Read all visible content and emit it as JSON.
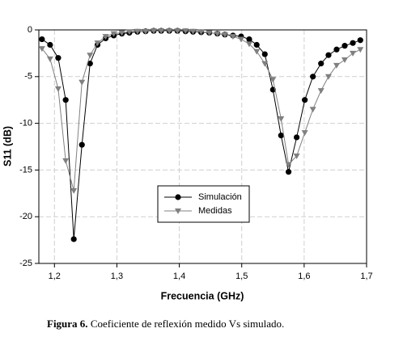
{
  "chart_data": {
    "type": "line",
    "x_label": "Frecuencia (GHz)",
    "y_label": "S11 (dB)",
    "caption_label": "Figura 6.",
    "caption_text": "Coeficiente de reflexión medido Vs simulado.",
    "x": [
      1.18,
      1.193,
      1.206,
      1.218,
      1.231,
      1.244,
      1.257,
      1.269,
      1.282,
      1.295,
      1.308,
      1.32,
      1.333,
      1.346,
      1.359,
      1.371,
      1.384,
      1.397,
      1.41,
      1.422,
      1.435,
      1.448,
      1.461,
      1.473,
      1.486,
      1.499,
      1.512,
      1.524,
      1.537,
      1.55,
      1.563,
      1.575,
      1.588,
      1.601,
      1.614,
      1.627,
      1.639,
      1.652,
      1.665,
      1.678,
      1.69
    ],
    "series": [
      {
        "name": "Simulación",
        "color": "#000000",
        "marker": "circle",
        "values": [
          -1.0,
          -1.6,
          -3.0,
          -7.5,
          -22.4,
          -12.3,
          -3.6,
          -1.6,
          -0.9,
          -0.6,
          -0.4,
          -0.3,
          -0.2,
          -0.15,
          -0.1,
          -0.1,
          -0.1,
          -0.1,
          -0.15,
          -0.2,
          -0.25,
          -0.3,
          -0.4,
          -0.5,
          -0.6,
          -0.7,
          -1.0,
          -1.6,
          -2.6,
          -6.4,
          -11.3,
          -15.2,
          -11.5,
          -7.5,
          -5.0,
          -3.6,
          -2.7,
          -2.1,
          -1.7,
          -1.4,
          -1.1
        ]
      },
      {
        "name": "Medidas",
        "color": "#808080",
        "marker": "triangle",
        "values": [
          -2.0,
          -3.1,
          -6.3,
          -14.0,
          -17.2,
          -5.6,
          -2.7,
          -1.4,
          -0.7,
          -0.4,
          -0.3,
          -0.2,
          -0.15,
          -0.15,
          -0.1,
          -0.1,
          -0.1,
          -0.1,
          -0.1,
          -0.15,
          -0.2,
          -0.3,
          -0.4,
          -0.5,
          -0.7,
          -1.0,
          -1.5,
          -2.3,
          -3.6,
          -5.3,
          -9.5,
          -14.4,
          -13.5,
          -11.0,
          -8.5,
          -6.5,
          -5.0,
          -3.8,
          -3.2,
          -2.5,
          -2.1
        ]
      }
    ],
    "xlim": [
      1.175,
      1.7
    ],
    "ylim": [
      -25,
      0
    ],
    "xticks": [
      {
        "value": 1.2,
        "label": "1,2"
      },
      {
        "value": 1.3,
        "label": "1,3"
      },
      {
        "value": 1.4,
        "label": "1,4"
      },
      {
        "value": 1.5,
        "label": "1,5"
      },
      {
        "value": 1.6,
        "label": "1,6"
      },
      {
        "value": 1.7,
        "label": "1,7"
      }
    ],
    "yticks": [
      -25,
      -20,
      -15,
      -10,
      -5,
      0
    ],
    "grid": true
  }
}
